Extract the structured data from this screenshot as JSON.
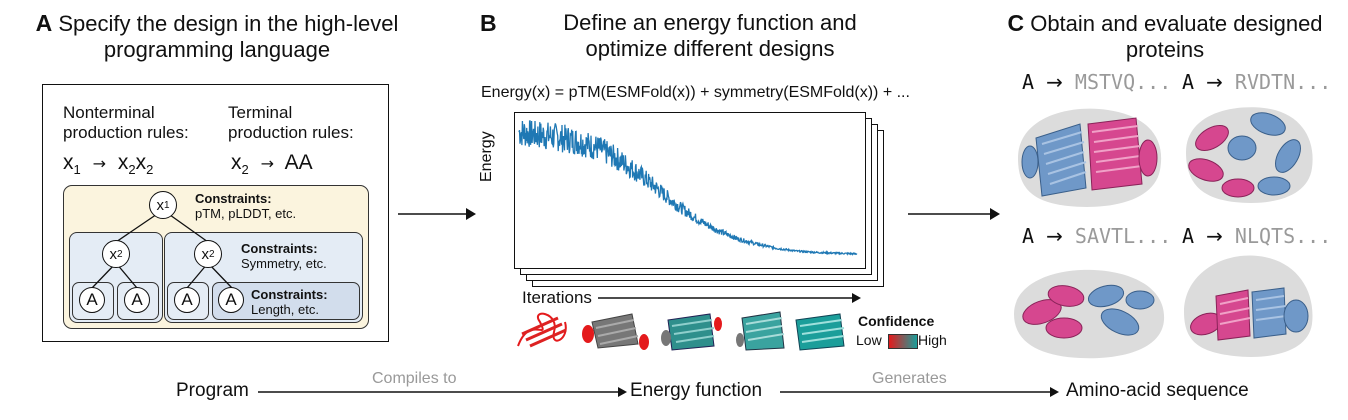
{
  "panelA": {
    "letter": "A",
    "title_line1": "Specify the design in the high-level",
    "title_line2": "programming language",
    "nonterminal_line1": "Nonterminal",
    "nonterminal_line2": "production rules:",
    "terminal_line1": "Terminal",
    "terminal_line2": "production rules:",
    "rule1_lhs": "x",
    "rule1_lhs_sub": "1",
    "rule1_rhs_a": "x",
    "rule1_rhs_a_sub": "2",
    "rule1_rhs_b": "x",
    "rule1_rhs_b_sub": "2",
    "rule2_lhs": "x",
    "rule2_lhs_sub": "2",
    "rule2_rhs": "AA",
    "arrow": "→",
    "constraints_label": "Constraints:",
    "constraints_root": "pTM, pLDDT, etc.",
    "constraints_mid": "Symmetry, etc.",
    "constraints_leaf": "Length, etc.",
    "node_root": "x",
    "node_root_sub": "1",
    "node_mid": "x",
    "node_mid_sub": "2",
    "leaf": "A"
  },
  "panelB": {
    "letter": "B",
    "title_line1": "Define an energy function and",
    "title_line2": "optimize different designs",
    "equation": "Energy(x) = pTM(ESMFold(x)) + symmetry(ESMFold(x)) + ...",
    "ylabel": "Energy",
    "xlabel": "Iterations",
    "confidence_label": "Confidence",
    "low_label": "Low",
    "high_label": "High",
    "colors": {
      "line": "#1f78b4",
      "low": "#e41a1c",
      "high": "#1b9e9a"
    }
  },
  "panelC": {
    "letter": "C",
    "title_line1": "Obtain and evaluate designed",
    "title_line2": "proteins",
    "designs": [
      {
        "lhs": "A",
        "arrow": "→",
        "seq": "MSTVQ..."
      },
      {
        "lhs": "A",
        "arrow": "→",
        "seq": "RVDTN..."
      },
      {
        "lhs": "A",
        "arrow": "→",
        "seq": "SAVTL..."
      },
      {
        "lhs": "A",
        "arrow": "→",
        "seq": "NLQTS..."
      }
    ],
    "colors": {
      "helix_blue": "#6f98c8",
      "helix_pink": "#d6478f",
      "shadow": "#dcdcdc"
    }
  },
  "bottom": {
    "program": "Program",
    "compiles_to": "Compiles to",
    "energy_function": "Energy function",
    "generates": "Generates",
    "amino_acid_sequence": "Amino-acid sequence"
  },
  "chart_data": {
    "type": "line",
    "xlabel": "Iterations",
    "ylabel": "Energy",
    "description_series": [
      {
        "values": [
          0.92,
          0.9,
          0.88,
          0.85,
          0.8,
          0.72,
          0.62,
          0.5,
          0.38,
          0.28,
          0.2,
          0.14,
          0.1,
          0.07,
          0.05,
          0.04,
          0.035,
          0.03
        ]
      }
    ]
  }
}
